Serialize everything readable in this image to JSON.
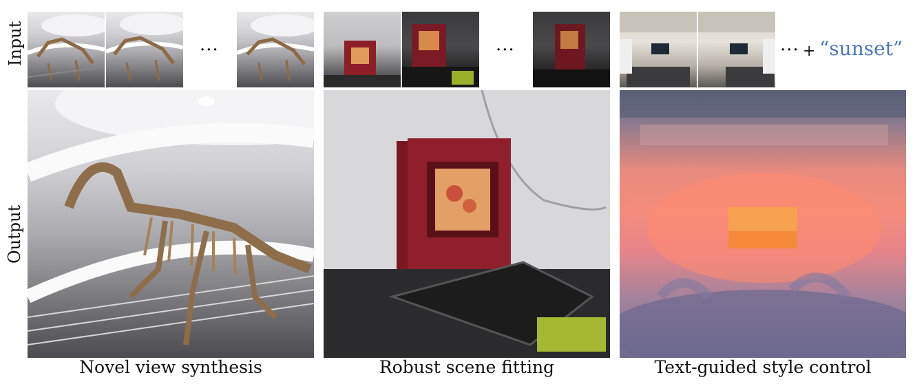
{
  "labels": {
    "input": "Input",
    "output": "Output"
  },
  "ellipsis": "···",
  "prompt": {
    "plus": "+",
    "text": "“sunset”"
  },
  "captions": {
    "left": "Novel view synthesis",
    "middle": "Robust scene fitting",
    "right": "Text-guided style control"
  },
  "colors": {
    "prompt_blue": "#4a78b8"
  }
}
